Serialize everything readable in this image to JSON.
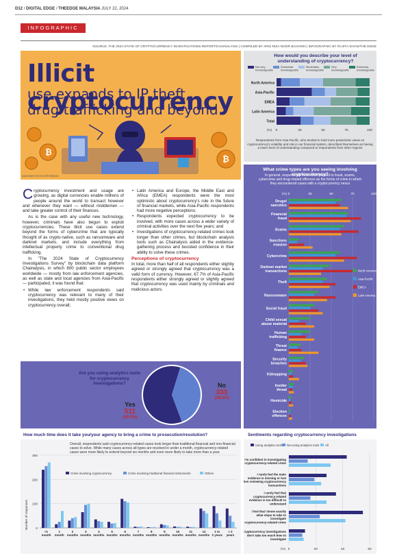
{
  "header": {
    "page": "D12",
    "sep1": "/",
    "section": "DIGITAL EDGE",
    "sep2": "/",
    "paper": "THEEDGE MALAYSIA",
    "date": "JULY 22, 2024"
  },
  "tag": "INFOGRAPHIC",
  "source": "SOURCE: THE 2024 STATE OF CRYPTOCURRENCY INVESTIGATIONS REPORT/CHAINALYSIS | COMPILED BY ARIS RIZA NOOR BAHARIN | INFOGRAPHIC BY RAJITA SIVAN/THE EDGE",
  "title": {
    "line1": "Illicit cryptocurrency",
    "line2": "use expands to IP theft,",
    "line3": "drug trafficking and beyond"
  },
  "image_credit": "IMAGE/INFOTECHCORPOREDGE",
  "colors": {
    "navy": "#2e2b7a",
    "red": "#c9282d",
    "orange": "#f4b04c",
    "purple": "#6a67b4"
  },
  "article": {
    "p1_dropcap": "C",
    "p1": "ryptocurrency investment and usage are growing, as digital currencies enable millions of people around the world to transact however and whenever they want — without middlemen — and take greater control of their finances.",
    "p2": "As is the case with any useful new technology, however, criminals have also begun to exploit cryptocurrencies. These illicit use cases extend beyond the forms of cybercrime that are typically thought of as crypto-native, such as ransomware and darknet markets, and include everything from intellectual property crime to conventional drug trafficking.",
    "p3": "In \"The 2024 State of Cryptocurrency Investigations Survey\" by blockchain data platform Chainalysis, in which 800 public sector employees worldwide — mostly from law enforcement agencies, as well as state and local agencies from Asia-Pacific — participated, it was found that:",
    "bullets_left": [
      "While law enforcement respondents said cryptocurrency was relevant to many of their investigations, they held mostly positive views on cryptocurrency overall;"
    ],
    "bullets_right": [
      "Latin America and Europe, the Middle East and Africa (EMEA) respondents were the most optimistic about cryptocurrency's role in the future of financial markets, while Asia-Pacific respondents had more negative perceptions;",
      "Respondents expected cryptocurrency to be involved, with more cases across a wider variety of criminal activities over the next five years; and",
      "Investigations of cryptocurrency-related crimes took longer than other crimes, but blockchain analysis tools such as Chainalysis aided in the evidence-gathering process and boosted confidence in their ability to solve these crimes."
    ],
    "subhead": "Perceptions of cryptocurrency",
    "p4": "In total, more than half of all respondents either slightly agreed or strongly agreed that cryptocurrency was a valid form of currency. However, 67.7% of Asia-Pacific respondents either strongly agreed or slightly agreed that cryptocurrency was used mainly by criminals and malicious actors."
  },
  "knowledge_chart": {
    "title": "How would you describe your level of understanding of cryptocurrency?",
    "legend": [
      "Not very knowledgeable",
      "Somewhat knowledgeable",
      "Moderately knowledgeable",
      "Very knowledgeable",
      "Extremely knowledgeable"
    ],
    "colors": [
      "#2e2b7a",
      "#6a8fd6",
      "#a9c0ea",
      "#7aa79b",
      "#2f7d6b"
    ],
    "rows": [
      {
        "label": "North America",
        "values": [
          5,
          20,
          25,
          35,
          15
        ]
      },
      {
        "label": "Asia-Pacific",
        "values": [
          38,
          14,
          12,
          23,
          13
        ]
      },
      {
        "label": "EMEA",
        "values": [
          14,
          16,
          28,
          27,
          15
        ]
      },
      {
        "label": "Latin America",
        "values": [
          10,
          8,
          22,
          40,
          20
        ]
      },
      {
        "label": "Total",
        "values": [
          26,
          14,
          18,
          28,
          14
        ]
      }
    ],
    "axis_unit": "(%)",
    "ticks": [
      "0",
      "25",
      "50",
      "75",
      "100"
    ],
    "note": "Respondents from Asia-Pacific, who tended to hold more pessimistic views on cryptocurrency's volatility and role in our financial system, described themselves as having a lower level of understanding compared to respondents from other regions"
  },
  "crime_chart": {
    "title": "What crime types are you seeing involving cryptocurrency?",
    "subtitle": "In general, respondents most often pointed to fraud, scams, cybercrime and drug-related offences as the forms of crime in which they encountered cases with a cryptocurrency nexus",
    "axis_unit": "(%)",
    "ticks": [
      "0",
      "25",
      "50",
      "75",
      "100"
    ],
    "legend": [
      "North America",
      "Asia-Pacific",
      "EMEA",
      "Latin America"
    ],
    "colors": [
      "#3aa650",
      "#3d9ad8",
      "#c9282d",
      "#f0962b"
    ],
    "categories": [
      "Drugs/ narcotics",
      "Financial fraud",
      "Scams",
      "Sanctions evasion",
      "Cybercrime",
      "Darknet market transactions",
      "Theft",
      "Ransomware",
      "Social fraud",
      "Child sexual abuse material",
      "Human trafficking",
      "Threat finance",
      "Security breaches",
      "Kidnapping",
      "Insider threat",
      "Homicide",
      "Election offences"
    ],
    "series": [
      {
        "name": "North America",
        "values": [
          62,
          70,
          65,
          12,
          60,
          48,
          45,
          35,
          30,
          25,
          25,
          14,
          18,
          5,
          6,
          3,
          2
        ]
      },
      {
        "name": "Asia-Pacific",
        "values": [
          55,
          68,
          60,
          10,
          55,
          40,
          40,
          30,
          25,
          12,
          15,
          10,
          14,
          3,
          5,
          2,
          1
        ]
      },
      {
        "name": "EMEA",
        "values": [
          60,
          85,
          82,
          18,
          80,
          75,
          55,
          55,
          35,
          20,
          20,
          15,
          20,
          5,
          4,
          3,
          2
        ]
      },
      {
        "name": "Latin America",
        "values": [
          70,
          73,
          62,
          28,
          65,
          38,
          48,
          45,
          40,
          30,
          30,
          35,
          22,
          12,
          6,
          5,
          4
        ]
      }
    ]
  },
  "tools_pie": {
    "question": "Are you using analytics tools for cryptocurrency investigations?",
    "yes_label": "Yes",
    "yes_count": "511",
    "yes_pct": "(60.5%)",
    "yes_value": 60.5,
    "no_label": "No",
    "no_count": "333",
    "no_pct": "(39.5%)",
    "no_value": 39.5,
    "colors": [
      "#2e2b7a",
      "#5f80cf"
    ]
  },
  "time_chart": {
    "title": "How much time does it take you/your agency to bring a crime to prosecution/resolution?",
    "note": "Overall, respondents said cryptocurrency-related cases took longer than traditional financial and non-financial cases to solve. While many cases across all types are resolved in under a month, cryptocurrency-related cases were more likely to extend beyond six months and even more likely to take more than a year.",
    "ylabel": "Number of responses",
    "yticks": [
      "0",
      "100",
      "200",
      "300"
    ],
    "legend": [
      "Crime involving cryptocurrency",
      "Crime involving traditional financial instruments",
      "Others"
    ],
    "colors": [
      "#2e2b7a",
      "#6a8fd6",
      "#7ec8ef"
    ],
    "categories": [
      "<1 month",
      "1 month",
      "2 months",
      "3 months",
      "4 months",
      "5 months",
      "6 months",
      "7 months",
      "8 months",
      "9 months",
      "10 months",
      "11 months",
      "12 months",
      "1 to 2 years",
      "> 2 years"
    ],
    "series": [
      {
        "name": "Crime involving cryptocurrency",
        "values": [
          240,
          15,
          30,
          65,
          35,
          25,
          120,
          5,
          3,
          15,
          6,
          5,
          80,
          90,
          80
        ]
      },
      {
        "name": "Crime involving traditional financial instruments",
        "values": [
          255,
          25,
          40,
          95,
          28,
          18,
          110,
          4,
          2,
          12,
          4,
          3,
          70,
          60,
          50
        ]
      },
      {
        "name": "Others",
        "values": [
          270,
          70,
          45,
          100,
          25,
          20,
          105,
          6,
          4,
          10,
          5,
          4,
          60,
          30,
          25
        ]
      }
    ]
  },
  "sentiment_chart": {
    "title": "Sentiments regarding cryptocurrency investigations",
    "legend": [
      "Using analytics tools",
      "Not using analytics tools",
      "All"
    ],
    "colors": [
      "#2e2b7a",
      "#6a8fd6",
      "#7ec8ef"
    ],
    "axis_unit": "(%)",
    "ticks": [
      "0",
      "20",
      "40",
      "60"
    ],
    "rows": [
      {
        "label": "I'm confident in investigating cryptocurrency-related crime",
        "values": [
          43,
          14,
          31
        ]
      },
      {
        "label": "I rarely feel the main evidence is missing or lost when reviewing cryptocurrency transactions",
        "values": [
          28,
          19,
          24
        ]
      },
      {
        "label": "I rarely feel that cryptocurrency-related evidence is too difficult to understand",
        "values": [
          35,
          16,
          28
        ]
      },
      {
        "label": "I feel that I know exactly what steps to take to investigate cryptocurrency-related crime",
        "values": [
          55,
          23,
          42
        ]
      },
      {
        "label": "Cryptocurrency investigations don't take too much time to investigate",
        "values": [
          12,
          10,
          11
        ]
      }
    ]
  }
}
